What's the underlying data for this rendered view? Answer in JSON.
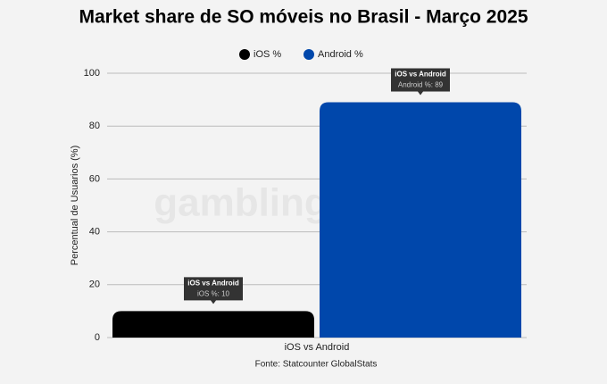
{
  "chart_data": {
    "type": "bar",
    "title": "Market share de SO móveis no Brasil - Março 2025",
    "y_label": "Percentual de Usuarios (%)",
    "source": "Fonte: Statcounter GlobalStats",
    "watermark": "gambling",
    "categories": [
      "iOS vs Android"
    ],
    "series": [
      {
        "name": "iOS %",
        "color": "#000000",
        "values": [
          10
        ],
        "value_labels": [
          "iOS %: 10"
        ]
      },
      {
        "name": "Android %",
        "color": "#0047ab",
        "values": [
          89
        ],
        "value_labels": [
          "Android %: 89"
        ]
      }
    ],
    "ylim": [
      0,
      100
    ],
    "yticks": [
      0,
      20,
      40,
      60,
      80,
      100
    ],
    "grid": true
  }
}
